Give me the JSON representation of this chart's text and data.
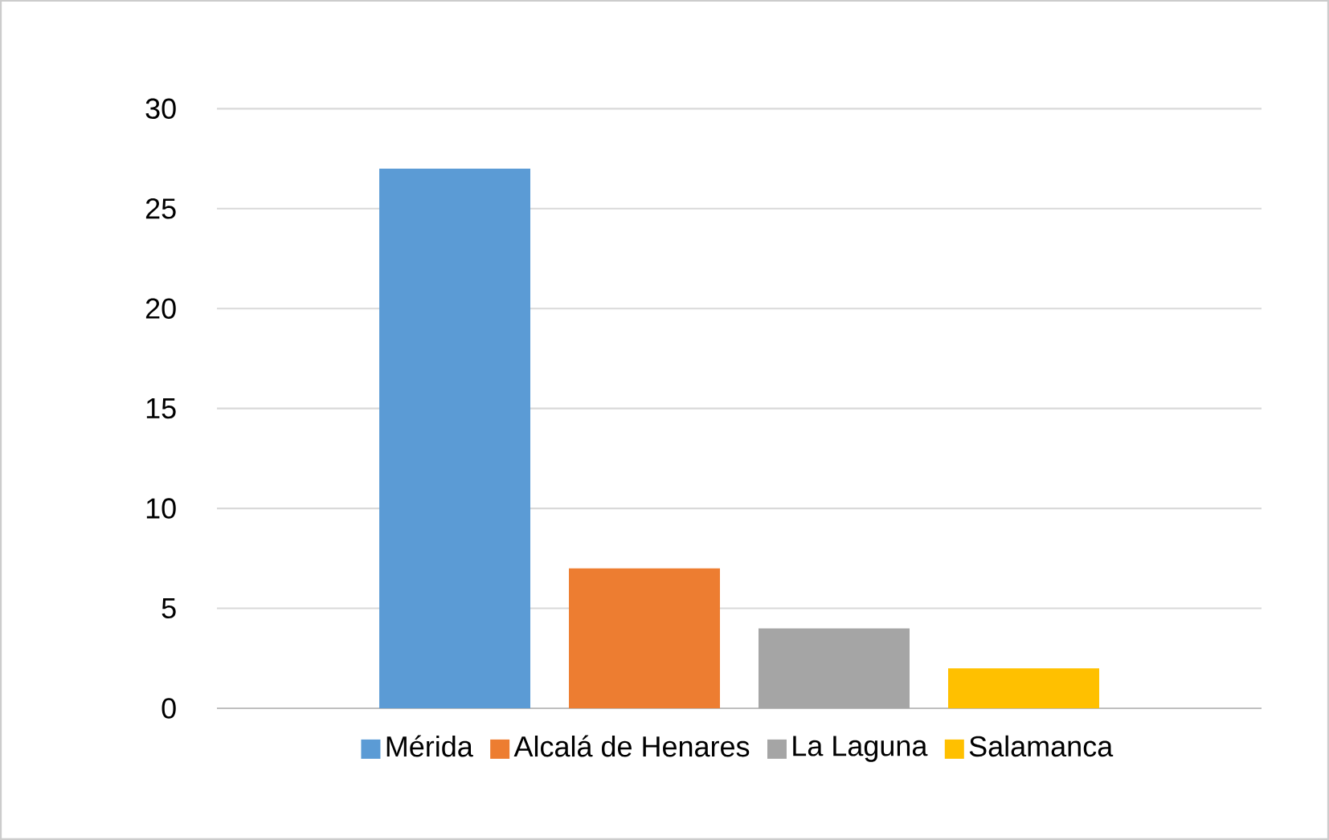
{
  "chart_data": {
    "type": "bar",
    "categories": [
      null
    ],
    "series": [
      {
        "name": "Mérida",
        "color": "#5b9bd5",
        "values": [
          27
        ]
      },
      {
        "name": "Alcalá de Henares",
        "color": "#ed7d31",
        "values": [
          7
        ]
      },
      {
        "name": "La Laguna",
        "color": "#a5a5a5",
        "values": [
          4
        ]
      },
      {
        "name": "Salamanca",
        "color": "#ffc000",
        "values": [
          2
        ]
      }
    ],
    "ylim": [
      0,
      30
    ],
    "yticks": [
      0,
      5,
      10,
      15,
      20,
      25,
      30
    ],
    "grid": "y",
    "legend": "bottom"
  }
}
